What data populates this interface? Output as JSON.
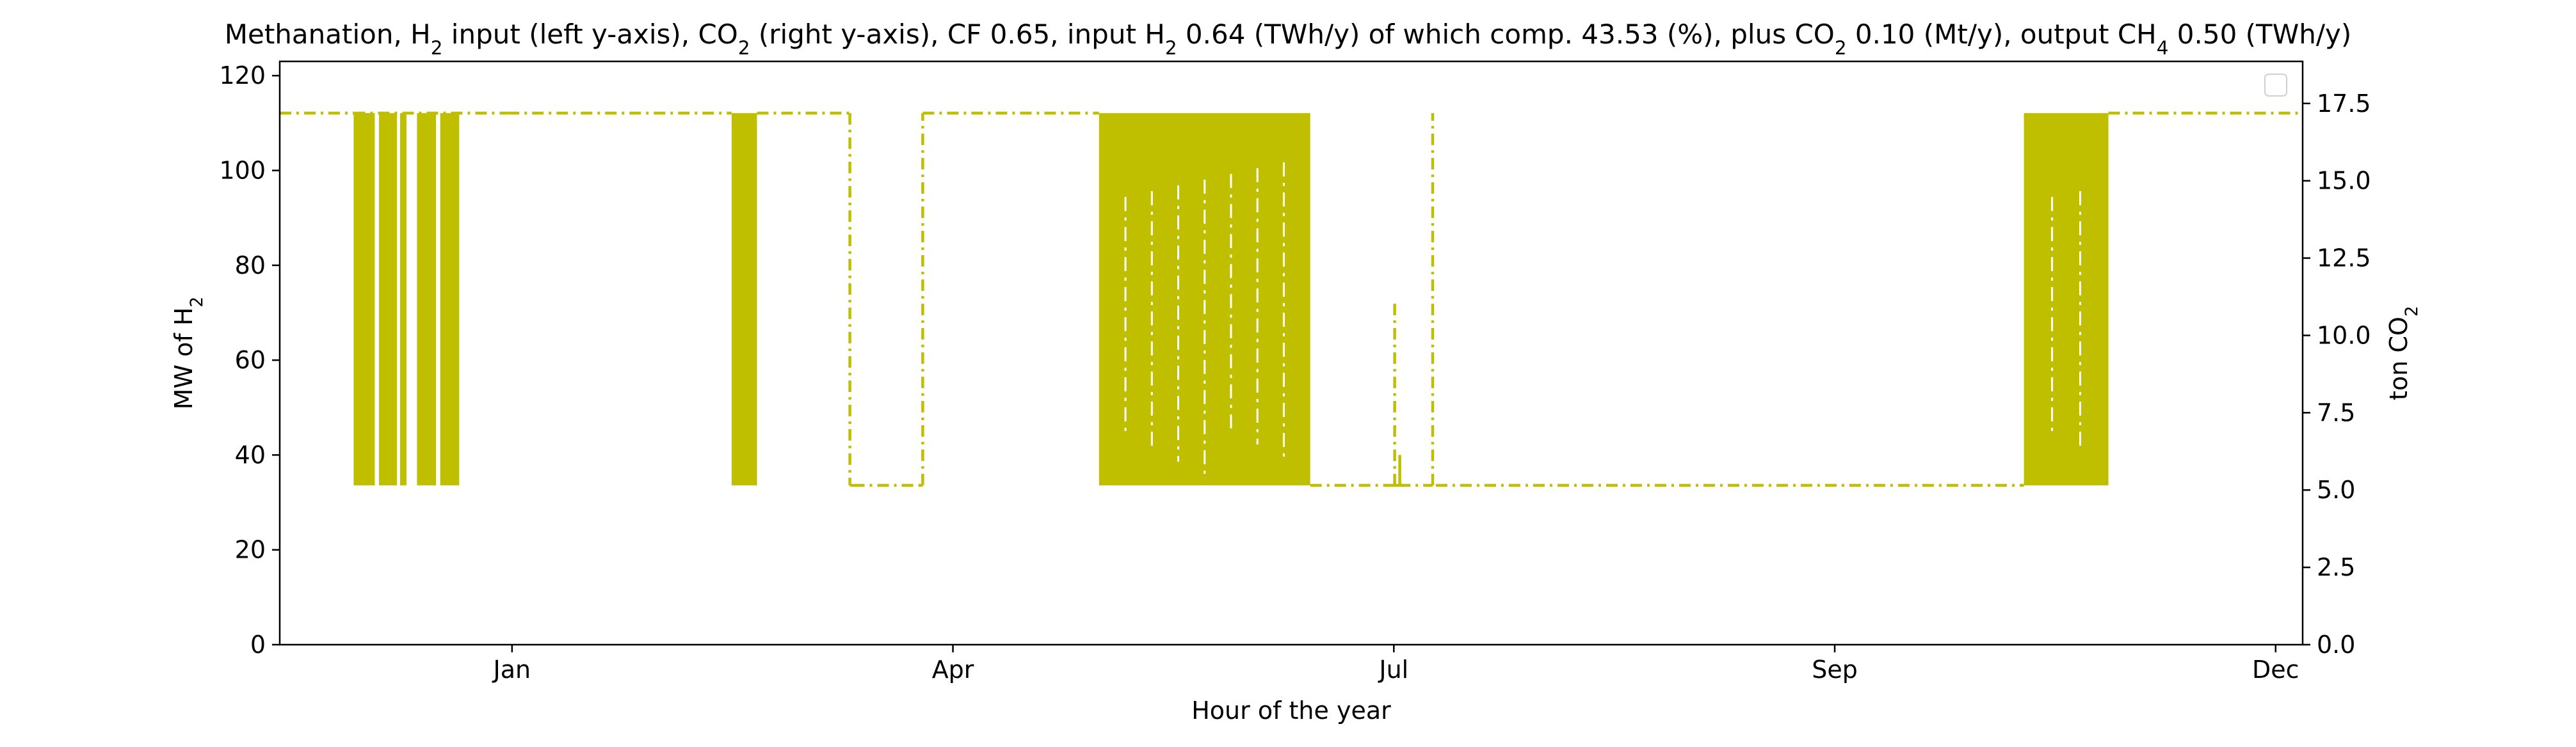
{
  "chart_data": {
    "type": "line",
    "title": {
      "segments": [
        {
          "text": "Methanation, H"
        },
        {
          "text": "2",
          "sub": true
        },
        {
          "text": " input (left y-axis), CO"
        },
        {
          "text": "2",
          "sub": true
        },
        {
          "text": " (right y-axis), CF 0.65, input H"
        },
        {
          "text": "2",
          "sub": true
        },
        {
          "text": " 0.64 (TWh/y) of which comp. 43.53 (%), plus CO"
        },
        {
          "text": "2",
          "sub": true
        },
        {
          "text": " 0.10 (Mt/y), output CH"
        },
        {
          "text": "4",
          "sub": true
        },
        {
          "text": " 0.50 (TWh/y)"
        }
      ]
    },
    "xlabel": "Hour of the year",
    "ylabel_left": {
      "segments": [
        {
          "text": "MW of H"
        },
        {
          "text": "2",
          "sub": true
        }
      ]
    },
    "ylabel_right": {
      "segments": [
        {
          "text": "ton CO"
        },
        {
          "text": "2",
          "sub": true
        }
      ]
    },
    "xlim": [
      -1100,
      8480
    ],
    "ylim_left": [
      0,
      123
    ],
    "ylim_right": [
      0,
      18.86
    ],
    "x_ticks": [
      {
        "x": 0,
        "label": "Jan"
      },
      {
        "x": 2088,
        "label": "Apr"
      },
      {
        "x": 4176,
        "label": "Jul"
      },
      {
        "x": 6264,
        "label": "Sep"
      },
      {
        "x": 8352,
        "label": "Dec"
      }
    ],
    "y_ticks_left": [
      {
        "v": 0,
        "label": "0"
      },
      {
        "v": 20,
        "label": "20"
      },
      {
        "v": 40,
        "label": "40"
      },
      {
        "v": 60,
        "label": "60"
      },
      {
        "v": 80,
        "label": "80"
      },
      {
        "v": 100,
        "label": "100"
      },
      {
        "v": 120,
        "label": "120"
      }
    ],
    "y_ticks_right": [
      {
        "v": 0,
        "label": "0.0"
      },
      {
        "v": 2.5,
        "label": "2.5"
      },
      {
        "v": 5,
        "label": "5.0"
      },
      {
        "v": 7.5,
        "label": "7.5"
      },
      {
        "v": 10,
        "label": "10.0"
      },
      {
        "v": 12.5,
        "label": "12.5"
      },
      {
        "v": 15,
        "label": "15.0"
      },
      {
        "v": 17.5,
        "label": "17.5"
      }
    ],
    "grid": false,
    "legend": {
      "placement": "top-right",
      "entries": []
    },
    "series": [
      {
        "axis": "left",
        "color": "#bfbf00",
        "linestyle": "dashdot",
        "max_level": 112.1,
        "min_level": 33.6,
        "x": [
          -1100,
          -750,
          -710,
          -680,
          -650,
          -610,
          -570,
          -530,
          -490,
          -460,
          -420,
          -400,
          -360,
          -340,
          -320,
          -290,
          -260,
          -240,
          -200,
          -170,
          -150,
          -110,
          -80,
          -20,
          1040,
          1600,
          1780,
          2040,
          2060,
          2080,
          2100,
          3720,
          3740,
          3760,
          3780,
          3850,
          3880,
          3910,
          3940,
          3970,
          4000,
          4010,
          4030,
          4040,
          4060,
          4090,
          4110,
          4130,
          4160,
          4180,
          4190,
          4210,
          4240,
          4260,
          4280,
          4310,
          4340,
          4360,
          4380,
          4400,
          4410,
          4430,
          4460,
          4480,
          4510,
          4530,
          4550,
          4580,
          4600,
          4620,
          4640,
          4660,
          4690,
          4710,
          4730,
          4760,
          4780,
          4800,
          4820,
          4840,
          4860,
          4880,
          4910,
          4930,
          4960,
          4980,
          5000,
          5020,
          5050,
          5070,
          5090,
          5120,
          5140,
          5160,
          5180,
          5200,
          5220,
          5240,
          5260,
          5280,
          5300,
          5320,
          5340,
          5360,
          5370,
          5380,
          5400,
          5410,
          5430,
          5440,
          5450,
          5460,
          5470,
          5480,
          5490,
          5500,
          5510,
          5520,
          5540,
          5560,
          5580,
          5620,
          5640,
          5660,
          5680,
          5700,
          5720,
          5740,
          5760,
          5780,
          5800,
          5820,
          5840,
          5860,
          5880,
          5900,
          5920,
          5940,
          5960,
          5980,
          6000,
          6020,
          6040,
          6060,
          6080,
          6100,
          6120,
          6140,
          6160,
          6180,
          6200,
          6220,
          6240,
          6260,
          6280,
          6300,
          6320,
          6340,
          6360,
          6380,
          6400,
          6420,
          6440,
          6460,
          6480,
          6500,
          6520,
          6540,
          6560,
          6580,
          6600,
          6620,
          6640,
          6660,
          6680,
          6700,
          6720,
          6740,
          6760,
          6780,
          6800,
          6820,
          6840,
          6860,
          6880,
          6900,
          6920,
          6940,
          6960,
          6980,
          7000,
          7020,
          7040,
          7060,
          7080,
          7100,
          7120,
          7140,
          7160,
          7180,
          7200,
          7220,
          7240,
          7260,
          7280,
          7300,
          7320,
          7340,
          7360,
          7380,
          7400,
          7420,
          7440,
          7460,
          7480,
          7500,
          7520,
          7540,
          7560,
          7580,
          7600,
          7620,
          7640,
          7660,
          7680,
          7700,
          7720,
          7740,
          7760,
          7780,
          7800,
          7820,
          7840,
          7860,
          7880,
          7900,
          7920,
          7940,
          7960,
          7980,
          8000,
          8020,
          8040,
          8060,
          8080,
          8100,
          8120,
          8140,
          8160,
          8180,
          8200,
          8220,
          8240,
          8260,
          8280,
          8300,
          8320,
          8340,
          8360,
          8380,
          8400,
          8420,
          8440,
          8460,
          8480
        ],
        "y": [
          112.1,
          112.1,
          33.6,
          112.1,
          33.6,
          112.1,
          33.6,
          112.1,
          33.6,
          112.1,
          33.6,
          112.1,
          33.6,
          112.1,
          33.6,
          112.1,
          33.6,
          112.1,
          33.6,
          112.1,
          33.6,
          112.1,
          33.6,
          112.1,
          112.1,
          112.1,
          112.1,
          112.1,
          112.1,
          112.1,
          112.1,
          112.1,
          112.1,
          112.1,
          112.1,
          112.1,
          112.1,
          112.1,
          112.1,
          112.1,
          112.1,
          112.1,
          112.1,
          112.1,
          112.1,
          112.1,
          112.1,
          112.1,
          112.1,
          112.1,
          112.1,
          112.1,
          112.1,
          112.1,
          112.1,
          112.1,
          112.1,
          112.1,
          112.1,
          112.1,
          112.1,
          112.1,
          112.1,
          112.1,
          112.1,
          112.1,
          112.1,
          112.1,
          112.1,
          112.1,
          112.1,
          112.1,
          112.1,
          112.1,
          112.1,
          112.1,
          112.1,
          112.1,
          112.1,
          112.1,
          112.1,
          112.1,
          112.1,
          112.1,
          112.1,
          112.1,
          112.1,
          112.1,
          112.1,
          112.1,
          112.1,
          112.1,
          112.1,
          112.1,
          112.1,
          112.1,
          112.1,
          112.1,
          112.1,
          112.1,
          112.1,
          112.1,
          112.1,
          112.1,
          112.1,
          112.1,
          112.1,
          112.1,
          112.1,
          112.1,
          112.1,
          112.1,
          112.1,
          112.1,
          112.1,
          112.1,
          112.1,
          112.1,
          112.1,
          112.1,
          112.1,
          112.1,
          112.1,
          112.1,
          112.1,
          112.1,
          112.1,
          112.1,
          112.1,
          112.1,
          112.1,
          112.1,
          112.1,
          112.1,
          112.1,
          112.1,
          112.1,
          112.1,
          112.1,
          112.1,
          112.1,
          112.1,
          112.1,
          112.1,
          112.1,
          112.1,
          112.1,
          112.1,
          112.1,
          112.1,
          112.1,
          112.1,
          112.1,
          112.1,
          112.1,
          112.1,
          112.1,
          112.1,
          112.1,
          112.1,
          112.1,
          112.1,
          112.1,
          112.1,
          112.1,
          112.1,
          112.1,
          112.1,
          112.1,
          112.1,
          112.1,
          112.1,
          112.1,
          112.1,
          112.1,
          112.1,
          112.1,
          112.1,
          112.1,
          112.1,
          112.1,
          112.1,
          112.1,
          112.1,
          112.1,
          112.1,
          112.1,
          112.1,
          112.1,
          112.1,
          112.1,
          112.1,
          112.1,
          112.1,
          112.1,
          112.1,
          112.1,
          112.1,
          112.1,
          112.1,
          112.1,
          112.1,
          112.1,
          112.1,
          112.1,
          112.1,
          112.1,
          112.1,
          112.1,
          112.1,
          112.1,
          112.1,
          112.1,
          112.1,
          112.1,
          112.1,
          112.1,
          112.1,
          112.1,
          112.1,
          112.1,
          112.1,
          112.1,
          112.1,
          112.1,
          112.1,
          112.1,
          112.1,
          112.1,
          112.1,
          112.1,
          112.1,
          112.1,
          112.1,
          112.1,
          112.1,
          112.1,
          112.1,
          112.1,
          112.1,
          112.1,
          112.1,
          112.1,
          112.1,
          112.1,
          112.1,
          112.1,
          112.1,
          112.1,
          112.1,
          112.1,
          112.1,
          112.1,
          112.1,
          112.1,
          112.1,
          112.1,
          112.1,
          112.1,
          112.1,
          112.1,
          112.1,
          112.1,
          112.1,
          112.1
        ]
      }
    ],
    "segments": [
      {
        "x0": -1100,
        "x1": -750,
        "level": "max"
      },
      {
        "x0": -750,
        "x1": -20,
        "level": "toggle_dense_a"
      },
      {
        "x0": -20,
        "x1": 1040,
        "level": "max"
      },
      {
        "x0": 1040,
        "x1": 1160,
        "level": "toggle_dense"
      },
      {
        "x0": 1160,
        "x1": 1600,
        "level": "max"
      },
      {
        "x0": 1600,
        "x1": 1615,
        "level": "drop"
      },
      {
        "x0": 1615,
        "x1": 1930,
        "level": "min"
      },
      {
        "x0": 1930,
        "x1": 1945,
        "level": "rise"
      },
      {
        "x0": 1945,
        "x1": 2780,
        "level": "max"
      },
      {
        "x0": 2780,
        "x1": 3780,
        "level": "toggle_dense"
      },
      {
        "x0": 3780,
        "x1": 4180,
        "level": "min"
      },
      {
        "x0": 4180,
        "x1": 4200,
        "level": "spike72"
      },
      {
        "x0": 4200,
        "x1": 4360,
        "level": "min"
      },
      {
        "x0": 4360,
        "x1": 4375,
        "level": "spike_max"
      },
      {
        "x0": 4375,
        "x1": 7160,
        "level": "min"
      },
      {
        "x0": 7160,
        "x1": 7560,
        "level": "toggle_dense"
      },
      {
        "x0": 7560,
        "x1": 8480,
        "level": "max"
      }
    ]
  }
}
